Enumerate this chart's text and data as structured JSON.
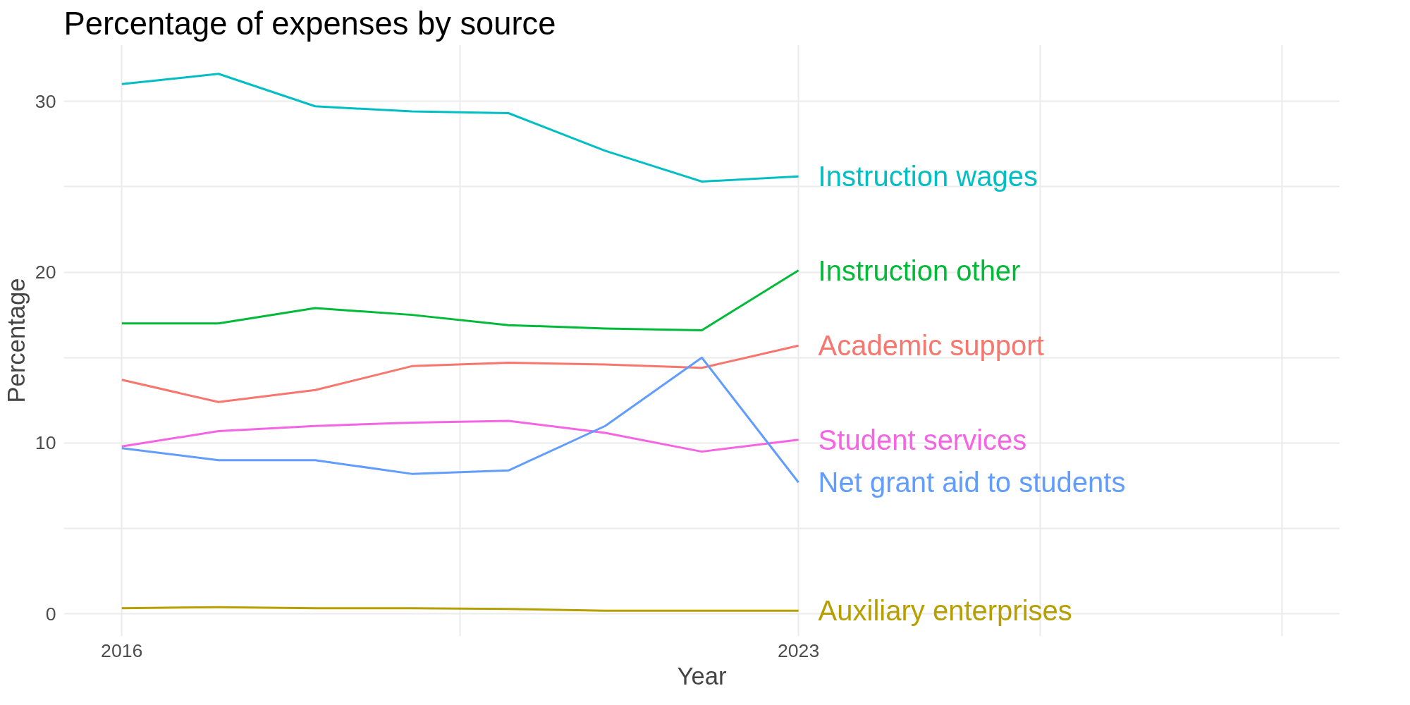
{
  "chart_data": {
    "type": "line",
    "title": "Percentage of expenses by source",
    "xlabel": "Year",
    "ylabel": "Percentage",
    "x": [
      2016,
      2017,
      2018,
      2019,
      2020,
      2021,
      2022,
      2023
    ],
    "xlim": [
      2015.4,
      2028.6
    ],
    "xticks": [
      2016,
      {
        "value": 2019.5,
        "label": null
      },
      2023,
      {
        "value": 2025.5,
        "label": null
      },
      {
        "value": 2028,
        "label": null
      }
    ],
    "ylim": [
      -1.3,
      33.3
    ],
    "yticks": [
      0,
      {
        "value": 5,
        "label": null
      },
      10,
      {
        "value": 15,
        "label": null
      },
      20,
      {
        "value": 25,
        "label": null
      },
      30
    ],
    "grid": true,
    "series": [
      {
        "name": "Instruction wages",
        "color": "#00bfc4",
        "values": [
          31.0,
          31.6,
          29.7,
          29.4,
          29.3,
          27.1,
          25.3,
          25.6
        ]
      },
      {
        "name": "Instruction other",
        "color": "#00ba38",
        "values": [
          17.0,
          17.0,
          17.9,
          17.5,
          16.9,
          16.7,
          16.6,
          20.1
        ]
      },
      {
        "name": "Academic support",
        "color": "#f8766d",
        "values": [
          13.7,
          12.4,
          13.1,
          14.5,
          14.7,
          14.6,
          14.4,
          15.7
        ]
      },
      {
        "name": "Student services",
        "color": "#f564e3",
        "values": [
          9.8,
          10.7,
          11.0,
          11.2,
          11.3,
          10.6,
          9.5,
          10.2
        ]
      },
      {
        "name": "Net grant aid to students",
        "color": "#619cff",
        "values": [
          9.7,
          9.0,
          9.0,
          8.2,
          8.4,
          11.0,
          15.0,
          7.7
        ]
      },
      {
        "name": "Auxiliary enterprises",
        "color": "#b79f00",
        "values": [
          0.34,
          0.4,
          0.34,
          0.34,
          0.3,
          0.2,
          0.2,
          0.2
        ]
      }
    ]
  }
}
